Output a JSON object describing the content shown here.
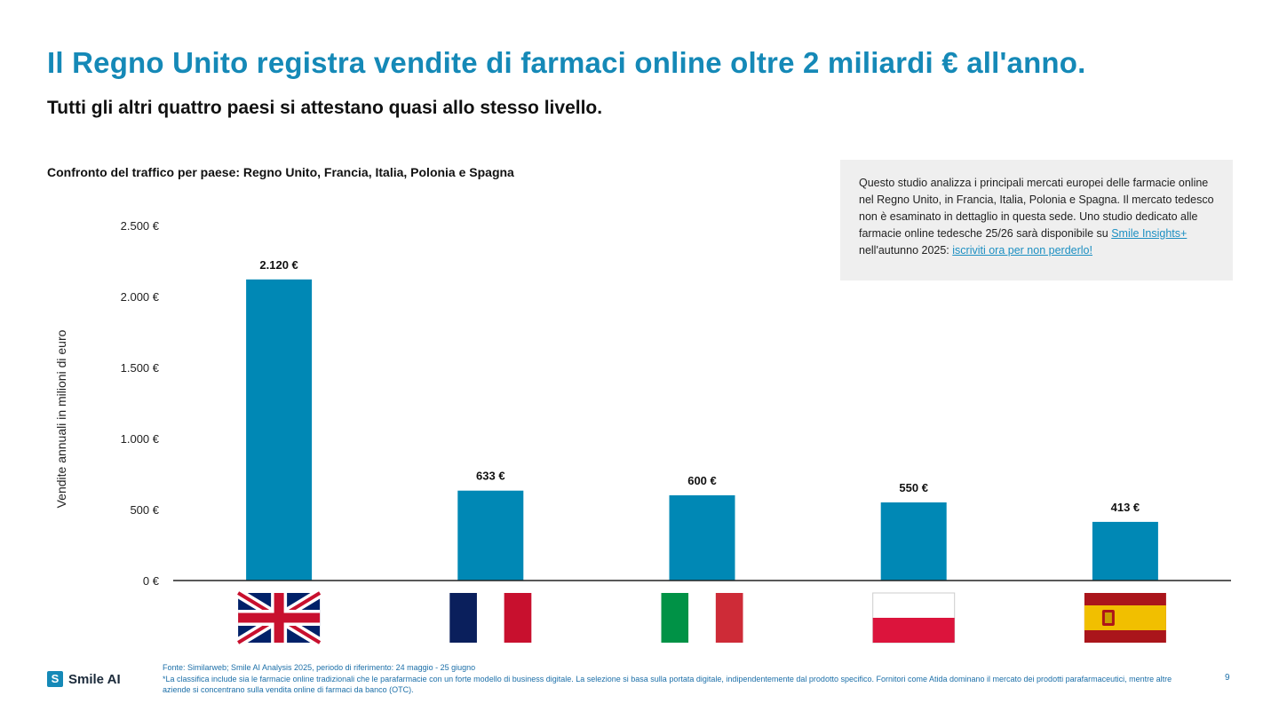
{
  "header": {
    "title": "Il Regno Unito registra vendite di farmaci online oltre 2 miliardi € all'anno.",
    "subtitle": "Tutti gli altri quattro paesi si attestano quasi allo stesso livello."
  },
  "info_box": {
    "text_before_link1": "Questo studio analizza i principali mercati europei delle farmacie online nel Regno Unito, in Francia, Italia, Polonia e Spagna. Il mercato tedesco non è esaminato in dettaglio in questa sede. Uno studio dedicato alle farmacie online tedesche 25/26 sarà disponibile su ",
    "link1": "Smile Insights+",
    "text_between": " nell'autunno 2025: ",
    "link2": "iscriviti ora per non perderlo!"
  },
  "chart_data": {
    "type": "bar",
    "title": "Confronto del traffico per paese: Regno Unito, Francia, Italia, Polonia e Spagna",
    "ylabel": "Vendite annuali in milioni di euro",
    "xlabel": "",
    "categories": [
      "Regno Unito",
      "Francia",
      "Italia",
      "Polonia",
      "Spagna"
    ],
    "values": [
      2120,
      633,
      600,
      550,
      413
    ],
    "value_labels": [
      "2.120 €",
      "633 €",
      "600 €",
      "550 €",
      "413 €"
    ],
    "ylim": [
      0,
      2500
    ],
    "yticks": [
      0,
      500,
      1000,
      1500,
      2000,
      2500
    ],
    "ytick_labels": [
      "0 €",
      "500 €",
      "1.000 €",
      "1.500 €",
      "2.000 €",
      "2.500 €"
    ],
    "grid": false,
    "bar_color": "#0088b5",
    "category_icons": [
      "uk-flag-icon",
      "france-flag-icon",
      "italy-flag-icon",
      "poland-flag-icon",
      "spain-flag-icon"
    ]
  },
  "footer": {
    "brand": "Smile AI",
    "logo_glyph": "S",
    "source": "Fonte: Similarweb; Smile AI Analysis 2025, periodo di riferimento: 24 maggio - 25 giugno",
    "note": "*La classifica include sia le farmacie online tradizionali che le parafarmacie con un forte modello di business digitale. La selezione si basa sulla portata digitale, indipendentemente dal prodotto specifico. Fornitori come Atida dominano il mercato dei prodotti parafarmaceutici, mentre altre aziende si concentrano sulla vendita online di farmaci da banco (OTC).",
    "page_number": "9"
  }
}
